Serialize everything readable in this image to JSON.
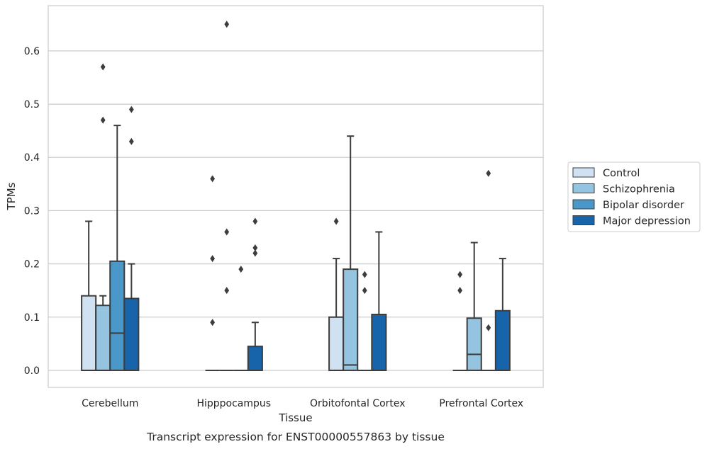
{
  "chart_data": {
    "type": "box",
    "title": "",
    "caption": "Transcript expression for ENST00000557863 by tissue",
    "xlabel": "Tissue",
    "ylabel": "TPMs",
    "ylim": [
      -0.032,
      0.685
    ],
    "yticks": [
      0.0,
      0.1,
      0.2,
      0.3,
      0.4,
      0.5,
      0.6
    ],
    "ytick_labels": [
      "0.0",
      "0.1",
      "0.2",
      "0.3",
      "0.4",
      "0.5",
      "0.6"
    ],
    "grid": "horizontal",
    "legend_position": "right",
    "categories": [
      "Cerebellum",
      "Hipppocampus",
      "Orbitofontal Cortex",
      "Prefrontal Cortex"
    ],
    "series": [
      {
        "name": "Control",
        "color": "#d0e1f2",
        "boxes": [
          {
            "q1": 0,
            "median": 0,
            "q3": 0.14,
            "whisker_low": 0,
            "whisker_high": 0.28,
            "outliers": []
          },
          {
            "q1": 0,
            "median": 0,
            "q3": 0,
            "whisker_low": 0,
            "whisker_high": 0,
            "outliers": [
              0.36,
              0.21,
              0.09
            ]
          },
          {
            "q1": 0,
            "median": 0,
            "q3": 0.1,
            "whisker_low": 0,
            "whisker_high": 0.21,
            "outliers": [
              0.28
            ]
          },
          {
            "q1": 0,
            "median": 0,
            "q3": 0,
            "whisker_low": 0,
            "whisker_high": 0,
            "outliers": [
              0.18,
              0.15
            ]
          }
        ]
      },
      {
        "name": "Schizophrenia",
        "color": "#94c4df",
        "boxes": [
          {
            "q1": 0,
            "median": 0,
            "q3": 0.122,
            "whisker_low": 0,
            "whisker_high": 0.14,
            "outliers": [
              0.57,
              0.47
            ]
          },
          {
            "q1": 0,
            "median": 0,
            "q3": 0,
            "whisker_low": 0,
            "whisker_high": 0,
            "outliers": [
              0.65,
              0.26,
              0.15
            ]
          },
          {
            "q1": 0,
            "median": 0.01,
            "q3": 0.19,
            "whisker_low": 0,
            "whisker_high": 0.44,
            "outliers": []
          },
          {
            "q1": 0,
            "median": 0.03,
            "q3": 0.098,
            "whisker_low": 0,
            "whisker_high": 0.24,
            "outliers": []
          }
        ]
      },
      {
        "name": "Bipolar disorder",
        "color": "#4a98c9",
        "boxes": [
          {
            "q1": 0,
            "median": 0.07,
            "q3": 0.205,
            "whisker_low": 0,
            "whisker_high": 0.46,
            "outliers": []
          },
          {
            "q1": 0,
            "median": 0,
            "q3": 0,
            "whisker_low": 0,
            "whisker_high": 0,
            "outliers": [
              0.19
            ]
          },
          {
            "q1": 0,
            "median": 0,
            "q3": 0,
            "whisker_low": 0,
            "whisker_high": 0,
            "outliers": [
              0.18,
              0.15
            ]
          },
          {
            "q1": 0,
            "median": 0,
            "q3": 0,
            "whisker_low": 0,
            "whisker_high": 0,
            "outliers": [
              0.37,
              0.08
            ]
          }
        ]
      },
      {
        "name": "Major depression",
        "color": "#1764ab",
        "boxes": [
          {
            "q1": 0,
            "median": 0,
            "q3": 0.135,
            "whisker_low": 0,
            "whisker_high": 0.2,
            "outliers": [
              0.49,
              0.43
            ]
          },
          {
            "q1": 0,
            "median": 0,
            "q3": 0.045,
            "whisker_low": 0,
            "whisker_high": 0.09,
            "outliers": [
              0.28,
              0.23,
              0.22
            ]
          },
          {
            "q1": 0,
            "median": 0,
            "q3": 0.105,
            "whisker_low": 0,
            "whisker_high": 0.26,
            "outliers": []
          },
          {
            "q1": 0,
            "median": 0,
            "q3": 0.112,
            "whisker_low": 0,
            "whisker_high": 0.21,
            "outliers": []
          }
        ]
      }
    ]
  }
}
